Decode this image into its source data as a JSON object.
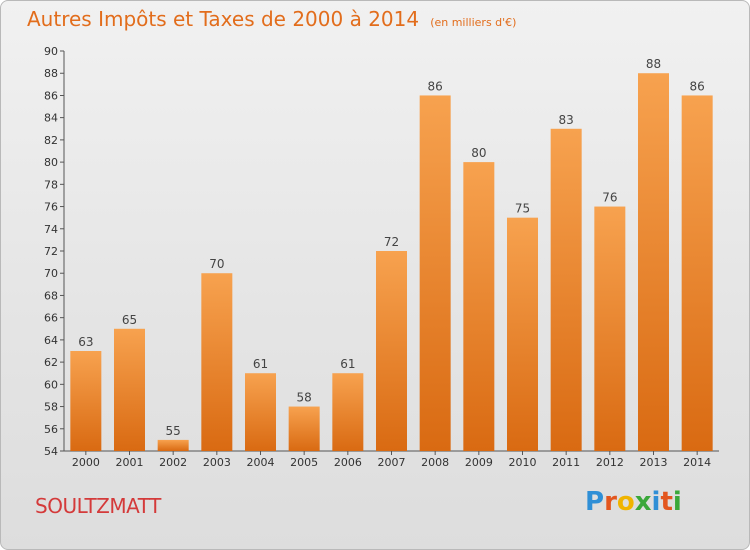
{
  "title": "Autres Impôts et Taxes de 2000 à 2014",
  "subtitle": "(en milliers d'€)",
  "location": "SOULTZMATT",
  "logo": {
    "text": "Proxiti",
    "letters": [
      "P",
      "r",
      "o",
      "x",
      "i",
      "t",
      "i"
    ],
    "colors": [
      "#2f8fd6",
      "#e3561e",
      "#f0b400",
      "#3aa83a",
      "#2f8fd6",
      "#e3561e",
      "#3aa83a"
    ]
  },
  "colors": {
    "bar": "#f08a2c",
    "bar_light": "#f7a24f",
    "bar_dark": "#dc6e14",
    "title": "#e26d1c",
    "location": "#d43a3a"
  },
  "chart_data": {
    "type": "bar",
    "title": "Autres Impôts et Taxes de 2000 à 2014",
    "subtitle": "(en milliers d'€)",
    "categories": [
      "2000",
      "2001",
      "2002",
      "2003",
      "2004",
      "2005",
      "2006",
      "2007",
      "2008",
      "2009",
      "2010",
      "2011",
      "2012",
      "2013",
      "2014"
    ],
    "values": [
      63,
      65,
      55,
      70,
      61,
      58,
      61,
      72,
      86,
      80,
      75,
      83,
      76,
      88,
      86
    ],
    "ylim": [
      54,
      90
    ],
    "yticks": [
      54,
      56,
      58,
      60,
      62,
      64,
      66,
      68,
      70,
      72,
      74,
      76,
      78,
      80,
      82,
      84,
      86,
      88,
      90
    ],
    "grid": false,
    "xlabel": "",
    "ylabel": ""
  }
}
